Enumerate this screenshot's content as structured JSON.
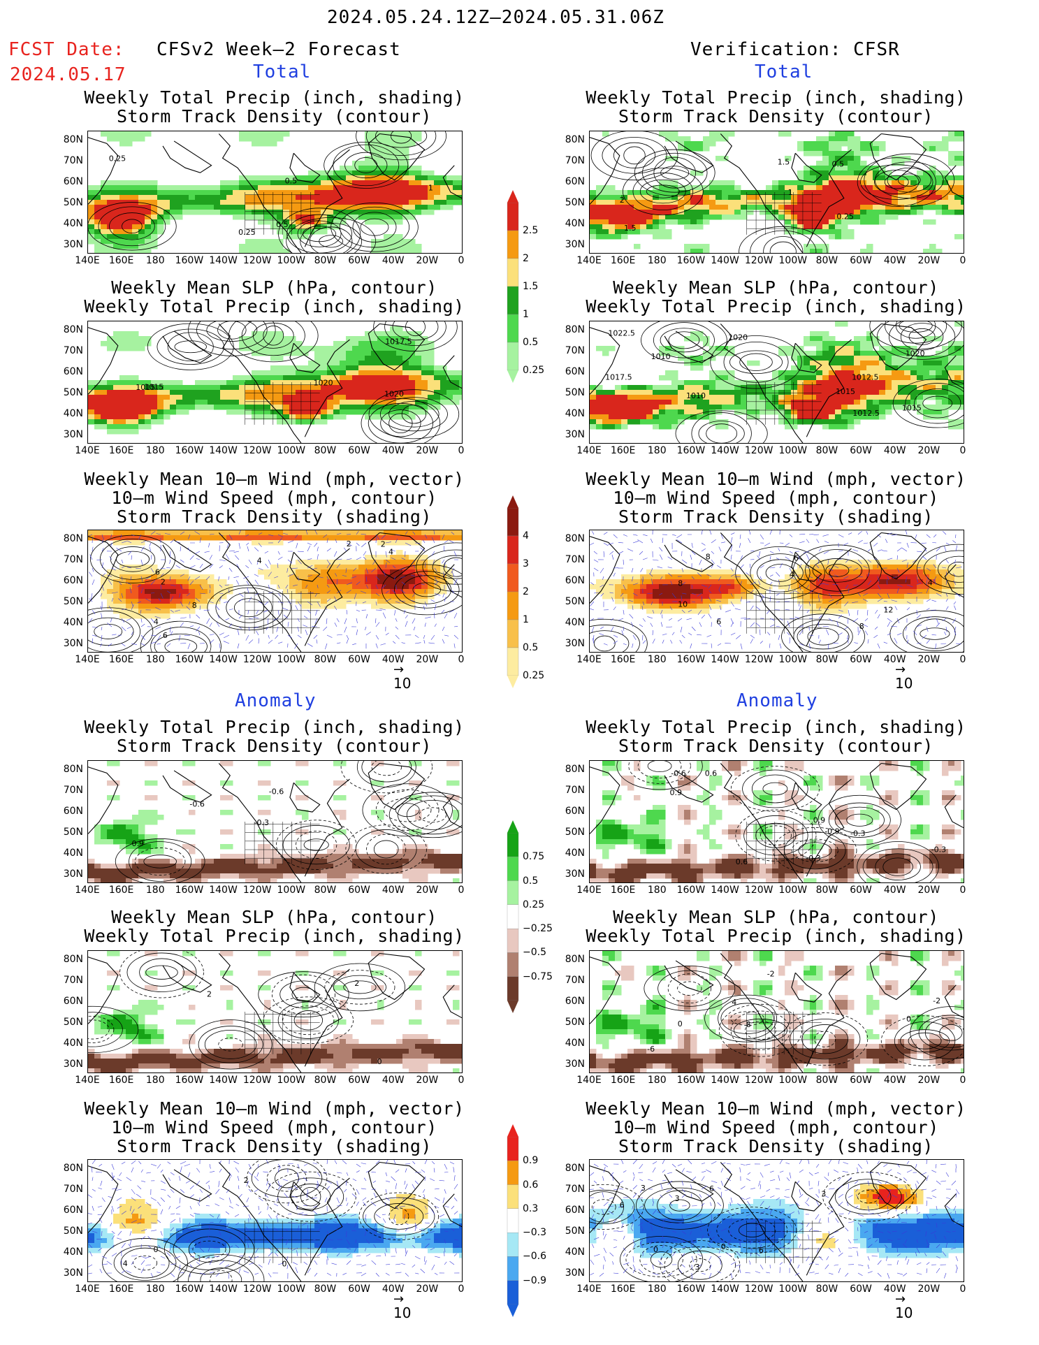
{
  "header": {
    "period": "2024.05.24.12Z—2024.05.31.06Z",
    "fcst_label": "FCST Date:",
    "fcst_date": "2024.05.17",
    "forecast_title": "CFSv2 Week—2 Forecast",
    "verif_title": "Verification: CFSR",
    "colors": {
      "fcst_text": "#e8231e",
      "section_text": "#1f3fe0"
    }
  },
  "sections": {
    "total": "Total",
    "anomaly": "Anomaly"
  },
  "panel_titles": {
    "precip_storm": [
      "Weekly Total Precip (inch, shading)",
      "Storm Track Density (contour)"
    ],
    "slp_precip": [
      "Weekly Mean SLP (hPa, contour)",
      "Weekly Total Precip (inch, shading)"
    ],
    "wind_storm": [
      "Weekly Mean 10—m Wind (mph, vector)",
      "10—m Wind Speed (mph, contour)",
      "Storm Track Density (shading)"
    ]
  },
  "axes": {
    "lat_labels": [
      "80N",
      "70N",
      "60N",
      "50N",
      "40N",
      "30N"
    ],
    "lon_labels": [
      "140E",
      "160E",
      "180",
      "160W",
      "140W",
      "120W",
      "100W",
      "80W",
      "60W",
      "40W",
      "20W",
      "0"
    ]
  },
  "vector_ref": "10",
  "colorbars": {
    "precip_total": {
      "labels": [
        "2.5",
        "2",
        "1.5",
        "1",
        "0.5",
        "0.25"
      ],
      "colors": [
        "#d9261c",
        "#f59a12",
        "#fbe07a",
        "#1fa21f",
        "#4ed84e",
        "#a6f2a0"
      ]
    },
    "storm_total": {
      "labels": [
        "4",
        "3",
        "2",
        "1",
        "0.5",
        "0.25"
      ],
      "colors": [
        "#8b1a10",
        "#d9261c",
        "#f05a1e",
        "#f59a12",
        "#f8c04a",
        "#fdeca0"
      ]
    },
    "precip_anom": {
      "labels": [
        "0.75",
        "0.5",
        "0.25",
        "−0.25",
        "−0.5",
        "−0.75"
      ],
      "colors": [
        "#16a316",
        "#4ed84e",
        "#a6f2a0",
        "#ffffff",
        "#e8c8c0",
        "#b08070",
        "#6b3a2a"
      ]
    },
    "storm_anom": {
      "labels": [
        "0.9",
        "0.6",
        "0.3",
        "−0.3",
        "−0.6",
        "−0.9"
      ],
      "colors": [
        "#e8231e",
        "#f59a12",
        "#fbe07a",
        "#ffffff",
        "#a6e8f5",
        "#4aa8f0",
        "#1a5fd8"
      ]
    },
    "contour_labels": {
      "fcst_precip_storm": [
        "0.25",
        "0.5",
        "0.5",
        "0.25",
        "1"
      ],
      "verif_precip_storm": [
        "1.5",
        "0.5",
        "0.25",
        "1.5",
        "1",
        "2"
      ],
      "fcst_slp": [
        "1020",
        "1020",
        "1017.5",
        "1015",
        "1015"
      ],
      "verif_slp": [
        "1012.5",
        "1022.5",
        "1017.5",
        "1010",
        "1015",
        "1020",
        "1012.5",
        "1020",
        "1010",
        "1015"
      ],
      "fcst_wind": [
        "4",
        "2",
        "4",
        "6",
        "8",
        "2",
        "6",
        "4",
        "2"
      ],
      "verif_wind": [
        "4",
        "6",
        "8",
        "10",
        "12",
        "8",
        "6",
        "4",
        "8"
      ],
      "fcst_precip_anom": [
        "0.9",
        "-0.6",
        "-0.3",
        "-0.6"
      ],
      "verif_precip_anom": [
        "-0.6",
        "-0.9",
        "-0.3",
        "0.6",
        "-0.3",
        "0.9",
        "0.6",
        "-0.3",
        "0.9"
      ],
      "fcst_slp_anom": [
        "2",
        "0",
        "2"
      ],
      "verif_slp_anom": [
        "8",
        "-2",
        "0",
        "4",
        "-6",
        "-2",
        "0"
      ],
      "fcst_wind_anom": [
        "0",
        "0",
        "4",
        "2"
      ],
      "verif_wind_anom": [
        "3",
        "6",
        "3",
        "6",
        "3",
        "0",
        "6",
        "3",
        "0"
      ]
    }
  }
}
